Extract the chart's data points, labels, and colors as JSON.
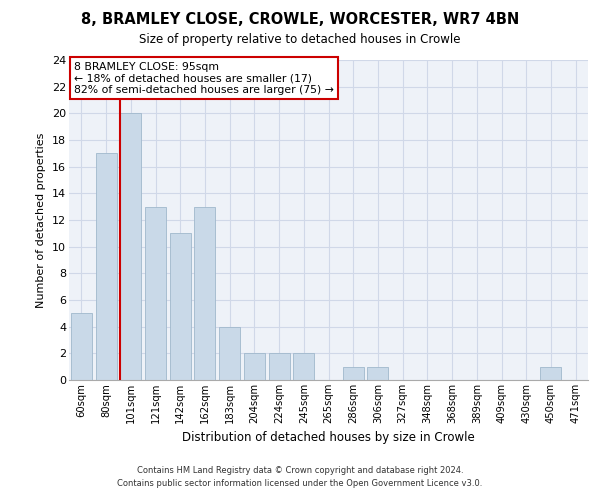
{
  "title_line1": "8, BRAMLEY CLOSE, CROWLE, WORCESTER, WR7 4BN",
  "title_line2": "Size of property relative to detached houses in Crowle",
  "xlabel": "Distribution of detached houses by size in Crowle",
  "ylabel": "Number of detached properties",
  "categories": [
    "60sqm",
    "80sqm",
    "101sqm",
    "121sqm",
    "142sqm",
    "162sqm",
    "183sqm",
    "204sqm",
    "224sqm",
    "245sqm",
    "265sqm",
    "286sqm",
    "306sqm",
    "327sqm",
    "348sqm",
    "368sqm",
    "389sqm",
    "409sqm",
    "430sqm",
    "450sqm",
    "471sqm"
  ],
  "values": [
    5,
    17,
    20,
    13,
    11,
    13,
    4,
    2,
    2,
    2,
    0,
    1,
    1,
    0,
    0,
    0,
    0,
    0,
    0,
    1,
    0
  ],
  "bar_color": "#c9d9e8",
  "bar_edge_color": "#a0b8cc",
  "property_line_color": "#cc0000",
  "annotation_text": "8 BRAMLEY CLOSE: 95sqm\n← 18% of detached houses are smaller (17)\n82% of semi-detached houses are larger (75) →",
  "annotation_box_color": "#ffffff",
  "annotation_box_edge_color": "#cc0000",
  "ylim": [
    0,
    24
  ],
  "yticks": [
    0,
    2,
    4,
    6,
    8,
    10,
    12,
    14,
    16,
    18,
    20,
    22,
    24
  ],
  "grid_color": "#d0d8e8",
  "background_color": "#eef2f8",
  "footer_line1": "Contains HM Land Registry data © Crown copyright and database right 2024.",
  "footer_line2": "Contains public sector information licensed under the Open Government Licence v3.0."
}
